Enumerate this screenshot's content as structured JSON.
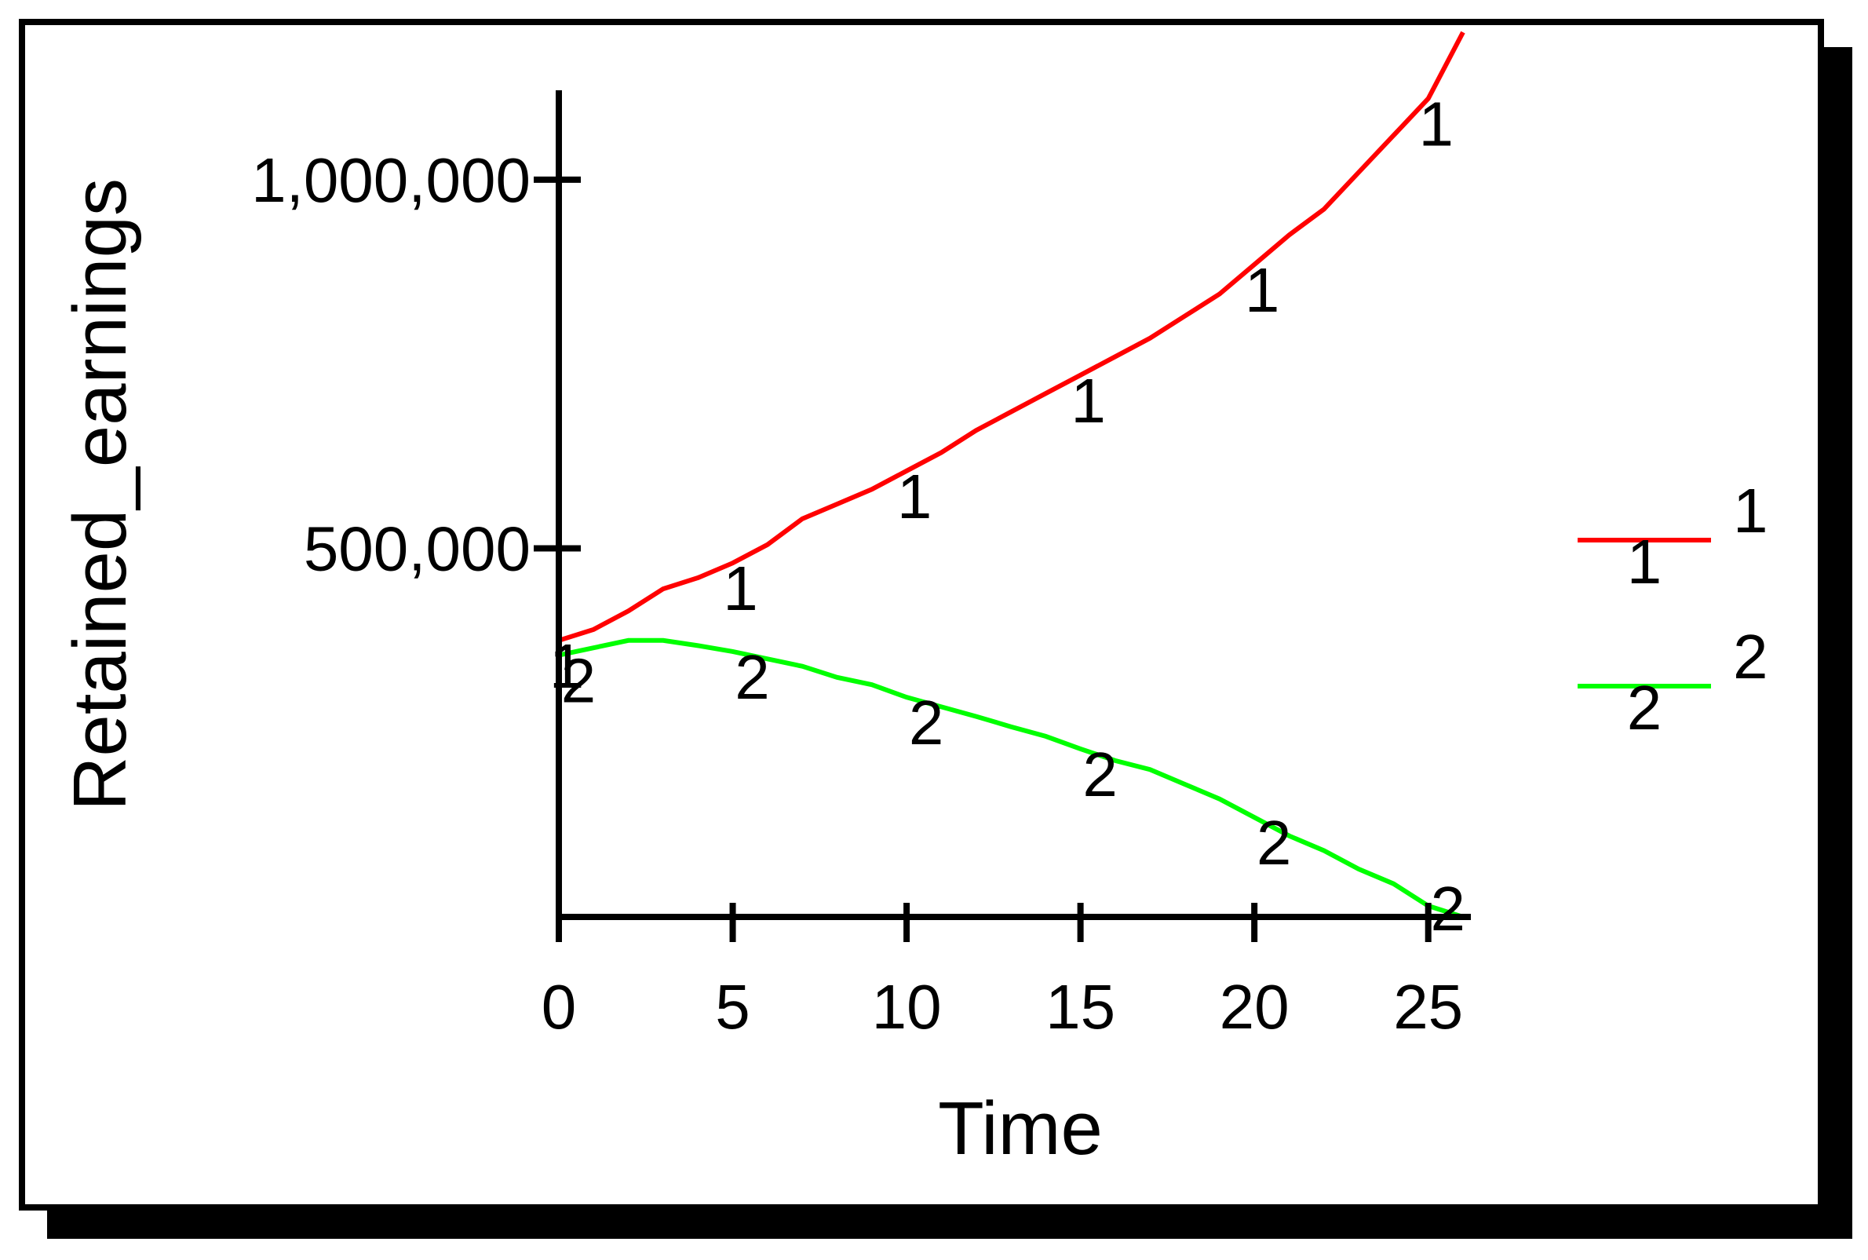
{
  "chart_data": {
    "type": "line",
    "title": "",
    "xlabel": "Time",
    "ylabel": "Retained_earnings",
    "xlim": [
      0,
      26
    ],
    "ylim": [
      0,
      1100000
    ],
    "x_ticks": [
      0,
      5,
      10,
      15,
      20,
      25
    ],
    "x_tick_labels": [
      "0",
      "5",
      "10",
      "15",
      "20",
      "25"
    ],
    "y_ticks": [
      500000,
      1000000
    ],
    "y_tick_labels": [
      "500,000",
      "1,000,000"
    ],
    "grid": false,
    "legend_position": "right",
    "x": [
      0,
      1,
      2,
      3,
      4,
      5,
      6,
      7,
      8,
      9,
      10,
      11,
      12,
      13,
      14,
      15,
      16,
      17,
      18,
      19,
      20,
      21,
      22,
      23,
      24,
      25,
      26
    ],
    "series": [
      {
        "name": "1",
        "marker": "1",
        "color": "#ff0000",
        "values": [
          375000,
          390000,
          415000,
          445000,
          460000,
          480000,
          505000,
          540000,
          560000,
          580000,
          605000,
          630000,
          660000,
          685000,
          710000,
          735000,
          760000,
          785000,
          815000,
          845000,
          885000,
          925000,
          960000,
          1010000,
          1060000,
          1110000,
          1200000
        ]
      },
      {
        "name": "2",
        "marker": "2",
        "color": "#00ff00",
        "values": [
          355000,
          365000,
          375000,
          375000,
          368000,
          360000,
          350000,
          340000,
          325000,
          315000,
          298000,
          285000,
          272000,
          258000,
          245000,
          228000,
          212000,
          200000,
          180000,
          160000,
          135000,
          110000,
          90000,
          65000,
          45000,
          15000,
          -5000
        ]
      }
    ],
    "label_x_positions": [
      0,
      5,
      10,
      15,
      20,
      25
    ]
  }
}
